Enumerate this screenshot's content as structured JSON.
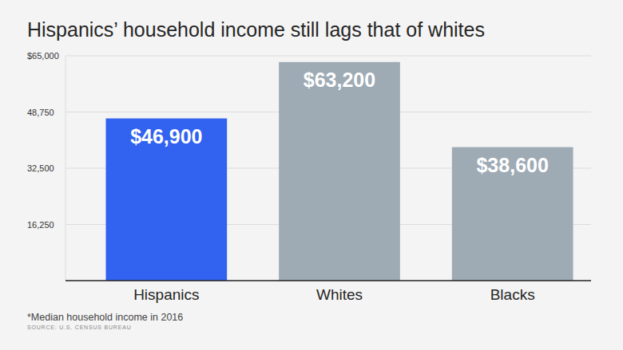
{
  "chart_data": {
    "type": "bar",
    "title": "Hispanics’ household income still lags that of whites",
    "categories": [
      "Hispanics",
      "Whites",
      "Blacks"
    ],
    "values": [
      46900,
      63200,
      38600
    ],
    "value_labels": [
      "$46,900",
      "$63,200",
      "$38,600"
    ],
    "colors": [
      "#3262f0",
      "#9eaab4",
      "#9eaab4"
    ],
    "ylim": [
      0,
      65000
    ],
    "yticks": [
      {
        "value": 16250,
        "label": "16,250"
      },
      {
        "value": 32500,
        "label": "32,500"
      },
      {
        "value": 48750,
        "label": "48,750"
      },
      {
        "value": 65000,
        "label": "$65,000"
      }
    ],
    "grid": true,
    "data_labels": true,
    "note": "*Median household income in 2016",
    "source": "SOURCE: U.S. CENSUS BUREAU"
  }
}
